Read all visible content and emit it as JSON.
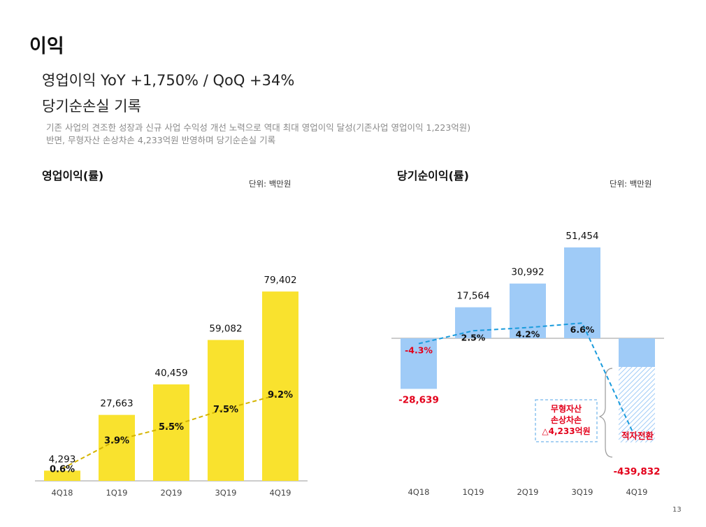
{
  "page": {
    "title": "이익",
    "headline_1": "영업이익 YoY +1,750% / QoQ +34%",
    "headline_2": "당기순손실 기록",
    "description_1": "기존 사업의 견조한 성장과 신규 사업 수익성 개선 노력으로 역대 최대 영업이익 달성(기존사업 영업이익 1,223억원)",
    "description_2": "반면, 무형자산 손상차손 4,233억원 반영하며 당기순손실 기록",
    "page_number": "13"
  },
  "colors": {
    "operating_bar": "#f9e22e",
    "operating_margin_line": "#d4b400",
    "net_bar": "#9fcbf7",
    "net_margin_line": "#1a9bdc",
    "negative_label": "#e3001b",
    "callout_border": "#8cc4ef"
  },
  "chart_data": [
    {
      "type": "bar",
      "title": "영업이익(률)",
      "unit_label": "단위: 백만원",
      "categories": [
        "4Q18",
        "1Q19",
        "2Q19",
        "3Q19",
        "4Q19"
      ],
      "values": [
        4293,
        27663,
        40459,
        59082,
        79402
      ],
      "value_labels": [
        "4,293",
        "27,663",
        "40,459",
        "59,082",
        "79,402"
      ],
      "margin_values": [
        0.6,
        3.9,
        5.5,
        7.5,
        9.2
      ],
      "margin_labels": [
        "0.6%",
        "3.9%",
        "5.5%",
        "7.5%",
        "9.2%"
      ],
      "ylim": [
        0,
        85000
      ]
    },
    {
      "type": "bar",
      "title": "당기순이익(률)",
      "unit_label": "단위: 백만원",
      "categories": [
        "4Q18",
        "1Q19",
        "2Q19",
        "3Q19",
        "4Q19"
      ],
      "values": [
        -28639,
        17564,
        30992,
        51454,
        -439832
      ],
      "value_labels": [
        "-28,639",
        "17,564",
        "30,992",
        "51,454",
        "-439,832"
      ],
      "margin_values": [
        -4.3,
        2.5,
        4.2,
        6.6,
        null
      ],
      "margin_labels": [
        "-4.3%",
        "2.5%",
        "4.2%",
        "6.6%",
        "적자전환"
      ],
      "callout_lines": [
        "무형자산",
        "손상차손",
        "△4,233억원"
      ]
    }
  ]
}
